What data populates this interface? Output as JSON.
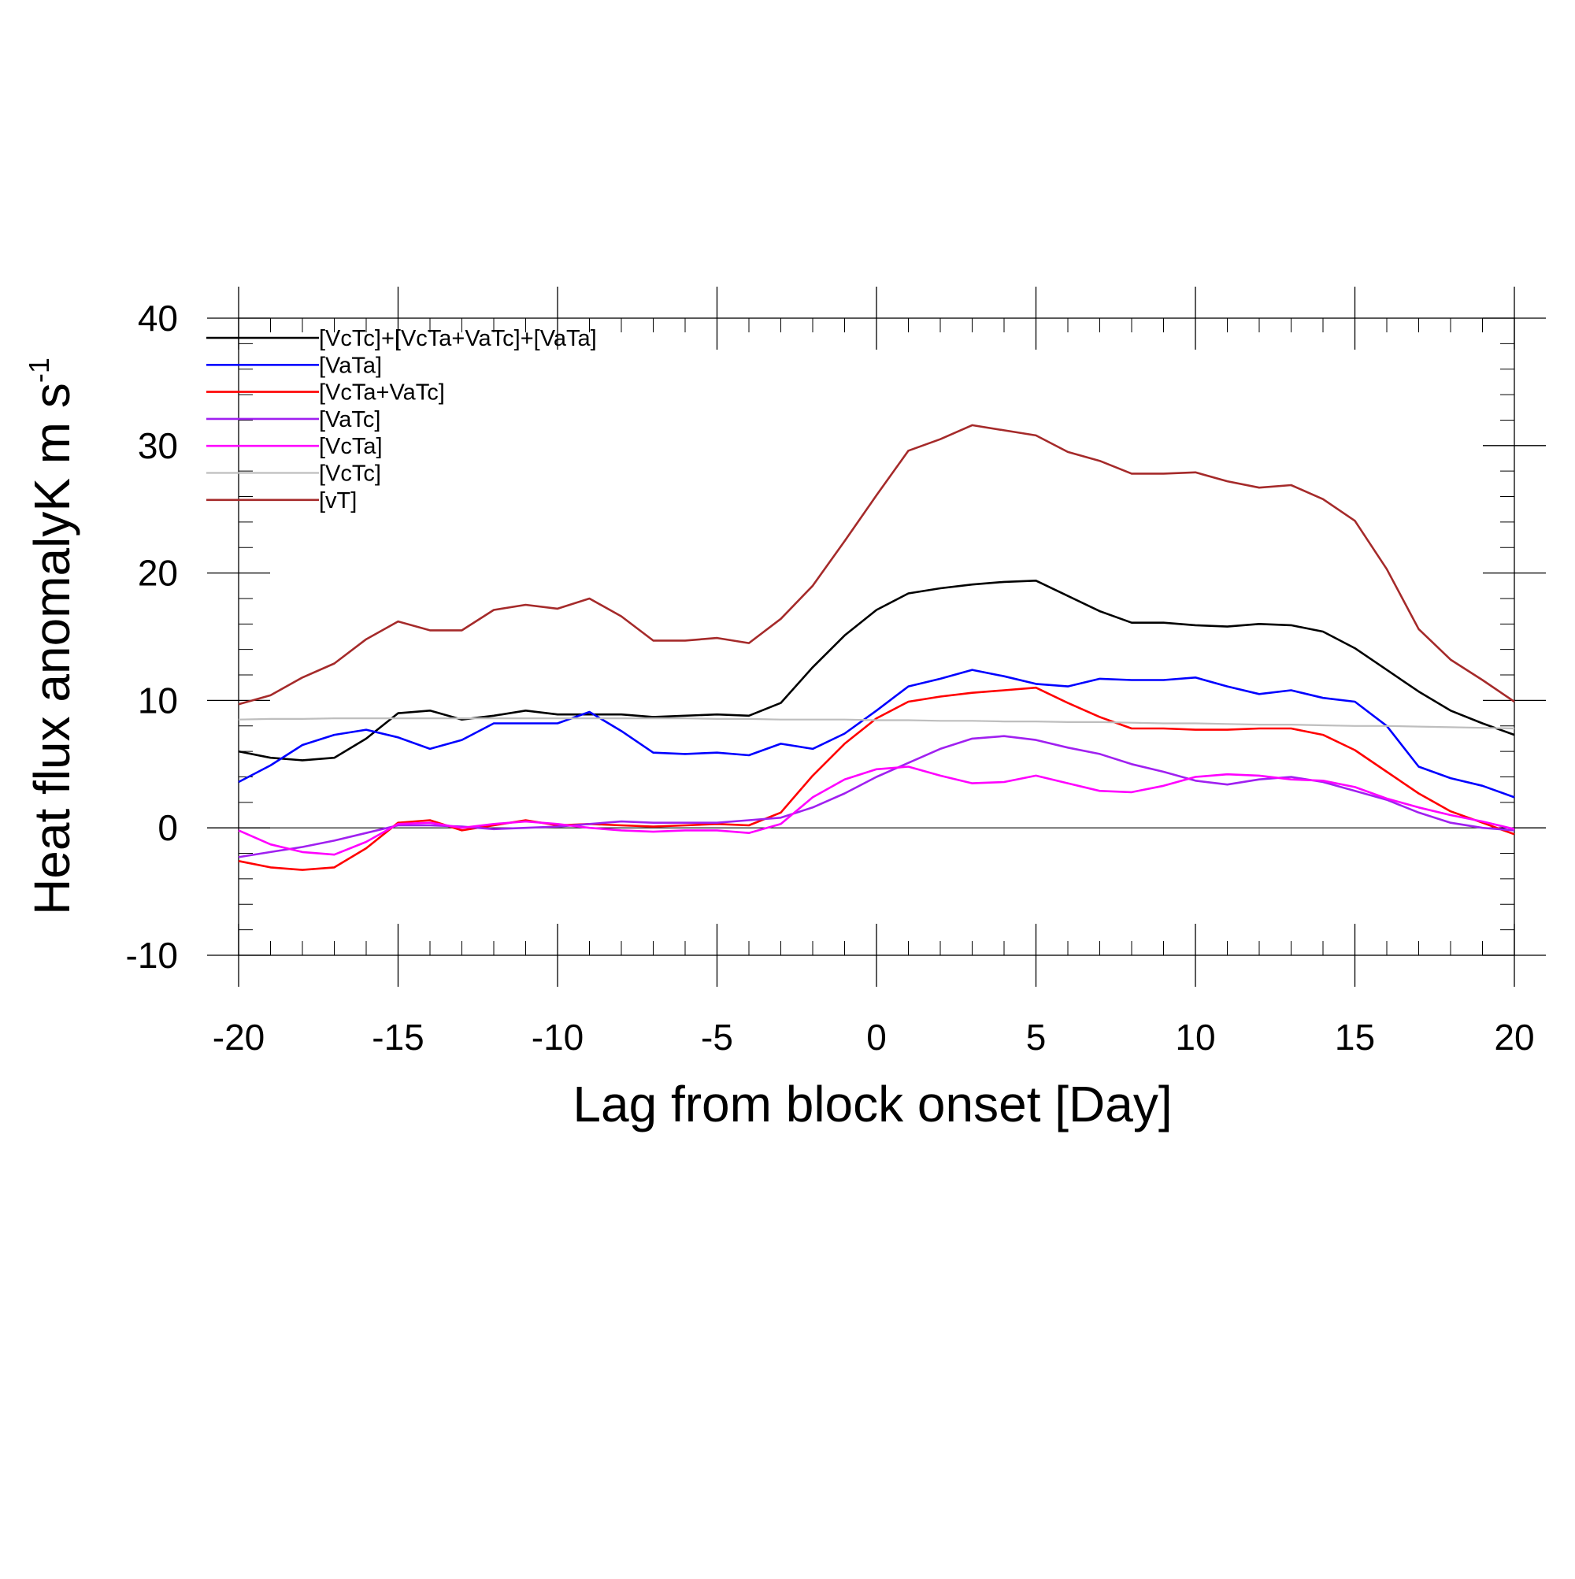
{
  "chart_data": {
    "type": "line",
    "title": "",
    "xlabel": "Lag from block onset [Day]",
    "ylabel": "Heat flux anomalyK m s",
    "ylabel_superscript": "-1",
    "xlim": [
      -20,
      20
    ],
    "ylim": [
      -10,
      40
    ],
    "x_ticks": [
      -20,
      -15,
      -10,
      -5,
      0,
      5,
      10,
      15,
      20
    ],
    "x_tick_labels": [
      "-20",
      "-15",
      "-10",
      "-5",
      "0",
      "5",
      "10",
      "15",
      "20"
    ],
    "y_ticks": [
      -10,
      0,
      10,
      20,
      30,
      40
    ],
    "y_tick_labels": [
      "-10",
      "0",
      "10",
      "20",
      "30",
      "40"
    ],
    "x_minor_step": 1,
    "y_minor_step": 2,
    "zero_line": true,
    "grid": false,
    "legend_position": "top-left",
    "x": [
      -20,
      -19,
      -18,
      -17,
      -16,
      -15,
      -14,
      -13,
      -12,
      -11,
      -10,
      -9,
      -8,
      -7,
      -6,
      -5,
      -4,
      -3,
      -2,
      -1,
      0,
      1,
      2,
      3,
      4,
      5,
      6,
      7,
      8,
      9,
      10,
      11,
      12,
      13,
      14,
      15,
      16,
      17,
      18,
      19,
      20
    ],
    "series": [
      {
        "name": "[VcTc]+[VcTa+VaTc]+[VaTa]",
        "color": "#000000",
        "values": [
          6.0,
          5.5,
          5.3,
          5.5,
          7.0,
          9.0,
          9.2,
          8.5,
          8.8,
          9.2,
          8.9,
          8.9,
          8.9,
          8.7,
          8.8,
          8.9,
          8.8,
          9.8,
          12.6,
          15.1,
          17.1,
          18.4,
          18.8,
          19.1,
          19.3,
          19.4,
          18.2,
          17.0,
          16.1,
          16.1,
          15.9,
          15.8,
          16.0,
          15.9,
          15.4,
          14.1,
          12.4,
          10.7,
          9.2,
          8.2,
          7.3
        ]
      },
      {
        "name": "[VaTa]",
        "color": "#0000ff",
        "values": [
          3.6,
          4.9,
          6.5,
          7.3,
          7.7,
          7.1,
          6.2,
          6.9,
          8.2,
          8.2,
          8.2,
          9.1,
          7.6,
          5.9,
          5.8,
          5.9,
          5.7,
          6.6,
          6.2,
          7.4,
          9.2,
          11.1,
          11.7,
          12.4,
          11.9,
          11.3,
          11.1,
          11.7,
          11.6,
          11.6,
          11.8,
          11.1,
          10.5,
          10.8,
          10.2,
          9.9,
          8.0,
          4.8,
          3.9,
          3.3,
          2.4
        ]
      },
      {
        "name": "[VcTa+VaTc]",
        "color": "#ff0000",
        "values": [
          -2.6,
          -3.1,
          -3.3,
          -3.1,
          -1.6,
          0.4,
          0.6,
          -0.2,
          0.2,
          0.6,
          0.2,
          0.3,
          0.2,
          0.1,
          0.2,
          0.3,
          0.2,
          1.2,
          4.1,
          6.6,
          8.6,
          9.9,
          10.3,
          10.6,
          10.8,
          11.0,
          9.8,
          8.7,
          7.8,
          7.8,
          7.7,
          7.7,
          7.8,
          7.8,
          7.3,
          6.1,
          4.4,
          2.7,
          1.3,
          0.4,
          -0.5
        ]
      },
      {
        "name": "[VaTc]",
        "color": "#a020f0",
        "values": [
          -2.3,
          -1.9,
          -1.5,
          -1.0,
          -0.4,
          0.2,
          0.2,
          0.1,
          -0.1,
          0.0,
          0.1,
          0.3,
          0.5,
          0.4,
          0.4,
          0.4,
          0.6,
          0.8,
          1.6,
          2.7,
          4.0,
          5.1,
          6.2,
          7.0,
          7.2,
          6.9,
          6.3,
          5.8,
          5.0,
          4.4,
          3.7,
          3.4,
          3.8,
          4.0,
          3.6,
          2.9,
          2.2,
          1.2,
          0.4,
          0.0,
          -0.2
        ]
      },
      {
        "name": "[VcTa]",
        "color": "#ff00ff",
        "values": [
          -0.2,
          -1.3,
          -1.9,
          -2.1,
          -1.1,
          0.3,
          0.4,
          0.0,
          0.3,
          0.5,
          0.3,
          0.0,
          -0.2,
          -0.3,
          -0.2,
          -0.2,
          -0.4,
          0.3,
          2.4,
          3.8,
          4.6,
          4.8,
          4.1,
          3.5,
          3.6,
          4.1,
          3.5,
          2.9,
          2.8,
          3.3,
          4.0,
          4.2,
          4.1,
          3.8,
          3.7,
          3.2,
          2.3,
          1.6,
          1.0,
          0.5,
          -0.1
        ]
      },
      {
        "name": "[VcTc]",
        "color": "#bebebe",
        "values": [
          8.5,
          8.55,
          8.55,
          8.6,
          8.6,
          8.6,
          8.6,
          8.6,
          8.6,
          8.6,
          8.6,
          8.6,
          8.6,
          8.6,
          8.6,
          8.55,
          8.55,
          8.5,
          8.5,
          8.5,
          8.45,
          8.45,
          8.4,
          8.4,
          8.35,
          8.35,
          8.3,
          8.3,
          8.25,
          8.2,
          8.2,
          8.15,
          8.1,
          8.1,
          8.05,
          8.0,
          8.0,
          7.95,
          7.9,
          7.85,
          7.8
        ]
      },
      {
        "name": "[vT]",
        "color": "#a52a2a",
        "values": [
          9.7,
          10.4,
          11.8,
          12.9,
          14.8,
          16.2,
          15.5,
          15.5,
          17.1,
          17.5,
          17.2,
          18.0,
          16.6,
          14.7,
          14.7,
          14.9,
          14.5,
          16.4,
          19.0,
          22.5,
          26.1,
          29.6,
          30.5,
          31.6,
          31.2,
          30.8,
          29.5,
          28.8,
          27.8,
          27.8,
          27.9,
          27.2,
          26.7,
          26.9,
          25.8,
          24.1,
          20.3,
          15.6,
          13.2,
          11.6,
          9.9
        ]
      }
    ]
  }
}
